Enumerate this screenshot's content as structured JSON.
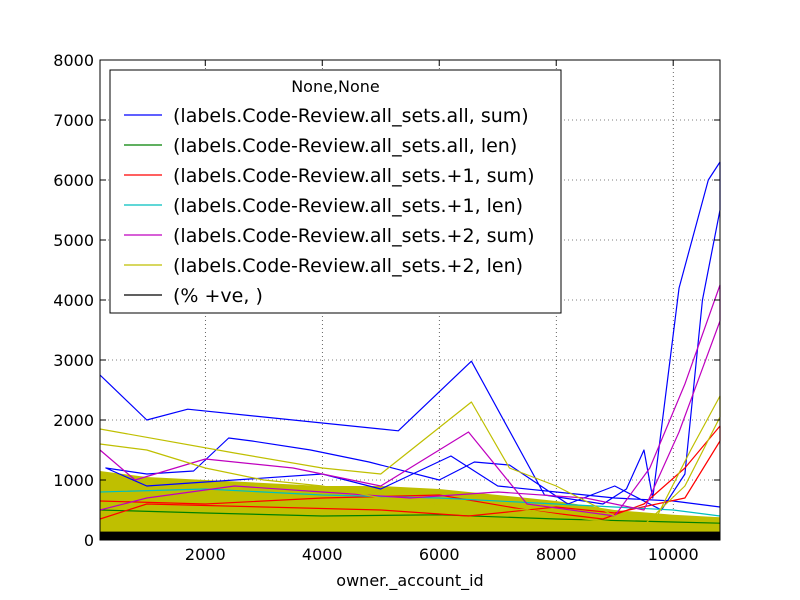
{
  "chart_data": {
    "type": "line",
    "xlabel": "owner._account_id",
    "ylabel": "",
    "xlim": [
      200,
      10800
    ],
    "ylim": [
      0,
      8000
    ],
    "x_ticks": [
      2000,
      4000,
      6000,
      8000,
      10000
    ],
    "y_ticks": [
      0,
      1000,
      2000,
      3000,
      4000,
      5000,
      6000,
      7000,
      8000
    ],
    "grid": true,
    "legend": {
      "title": "None,None",
      "placement": "top-left"
    },
    "series": [
      {
        "name": "(labels.Code-Review.all_sets.all, sum)",
        "color": "#0000ff",
        "points": [
          [
            200,
            2750
          ],
          [
            1000,
            2000
          ],
          [
            1700,
            2180
          ],
          [
            5300,
            1820
          ],
          [
            6550,
            2980
          ],
          [
            7800,
            750
          ],
          [
            8800,
            600
          ],
          [
            9200,
            850
          ],
          [
            9500,
            1500
          ],
          [
            9650,
            700
          ],
          [
            10100,
            4200
          ],
          [
            10600,
            6000
          ],
          [
            10800,
            6300
          ],
          [
            10800,
            5500
          ],
          [
            10500,
            4000
          ],
          [
            10200,
            1100
          ],
          [
            9800,
            500
          ],
          [
            9000,
            900
          ],
          [
            8200,
            600
          ],
          [
            7200,
            1250
          ],
          [
            6600,
            1300
          ],
          [
            6000,
            1000
          ],
          [
            4800,
            1300
          ],
          [
            3800,
            1500
          ],
          [
            2800,
            1650
          ],
          [
            2400,
            1700
          ],
          [
            1800,
            1150
          ],
          [
            1000,
            1100
          ],
          [
            300,
            1200
          ],
          [
            1000,
            900
          ],
          [
            2500,
            1000
          ],
          [
            4000,
            1100
          ],
          [
            5000,
            850
          ],
          [
            6200,
            1400
          ],
          [
            7000,
            900
          ],
          [
            8000,
            800
          ],
          [
            9000,
            700
          ],
          [
            10000,
            650
          ],
          [
            10800,
            550
          ]
        ]
      },
      {
        "name": "(labels.Code-Review.all_sets.all, len)",
        "color": "#008000",
        "points": [
          [
            200,
            500
          ],
          [
            2000,
            450
          ],
          [
            4000,
            400
          ],
          [
            6000,
            420
          ],
          [
            8000,
            350
          ],
          [
            10000,
            300
          ],
          [
            10800,
            280
          ]
        ]
      },
      {
        "name": "(labels.Code-Review.all_sets.+1, sum)",
        "color": "#ff0000",
        "points": [
          [
            200,
            650
          ],
          [
            2000,
            600
          ],
          [
            4000,
            700
          ],
          [
            6000,
            750
          ],
          [
            7500,
            500
          ],
          [
            8800,
            350
          ],
          [
            9500,
            600
          ],
          [
            10200,
            1200
          ],
          [
            10800,
            1900
          ],
          [
            10800,
            1650
          ],
          [
            10200,
            700
          ],
          [
            9000,
            450
          ],
          [
            8000,
            550
          ],
          [
            6500,
            400
          ],
          [
            5000,
            500
          ],
          [
            3000,
            550
          ],
          [
            1000,
            600
          ],
          [
            200,
            350
          ]
        ]
      },
      {
        "name": "(labels.Code-Review.all_sets.+1, len)",
        "color": "#00bfbf",
        "points": [
          [
            200,
            800
          ],
          [
            2000,
            850
          ],
          [
            4000,
            750
          ],
          [
            6000,
            700
          ],
          [
            8000,
            600
          ],
          [
            10000,
            500
          ],
          [
            10800,
            400
          ]
        ]
      },
      {
        "name": "(labels.Code-Review.all_sets.+2, sum)",
        "color": "#bf00bf",
        "points": [
          [
            200,
            1500
          ],
          [
            800,
            1000
          ],
          [
            2000,
            1350
          ],
          [
            3500,
            1200
          ],
          [
            5000,
            900
          ],
          [
            6500,
            1800
          ],
          [
            7500,
            600
          ],
          [
            9000,
            400
          ],
          [
            9600,
            1200
          ],
          [
            10200,
            2600
          ],
          [
            10800,
            4250
          ],
          [
            10800,
            3650
          ],
          [
            10100,
            1800
          ],
          [
            9500,
            500
          ],
          [
            8500,
            700
          ],
          [
            7000,
            800
          ],
          [
            5500,
            700
          ],
          [
            4000,
            800
          ],
          [
            2500,
            900
          ],
          [
            1000,
            700
          ],
          [
            200,
            500
          ]
        ]
      },
      {
        "name": "(labels.Code-Review.all_sets.+2, len)",
        "color": "#bfbf00",
        "points": [
          [
            200,
            1850
          ],
          [
            2500,
            1450
          ],
          [
            4000,
            1200
          ],
          [
            5000,
            1100
          ],
          [
            6550,
            2300
          ],
          [
            7200,
            1200
          ],
          [
            8000,
            900
          ],
          [
            9000,
            400
          ],
          [
            9700,
            350
          ],
          [
            10300,
            1500
          ],
          [
            10800,
            2400
          ],
          [
            10800,
            2050
          ],
          [
            10200,
            900
          ],
          [
            9500,
            250
          ],
          [
            8500,
            350
          ],
          [
            7500,
            500
          ],
          [
            6000,
            600
          ],
          [
            5000,
            700
          ],
          [
            4000,
            900
          ],
          [
            3000,
            1000
          ],
          [
            2000,
            1200
          ],
          [
            1000,
            1500
          ],
          [
            200,
            1600
          ]
        ]
      },
      {
        "name": "(% +ve, )",
        "color": "#000000",
        "points": [
          [
            200,
            50
          ],
          [
            10800,
            50
          ]
        ]
      }
    ]
  }
}
